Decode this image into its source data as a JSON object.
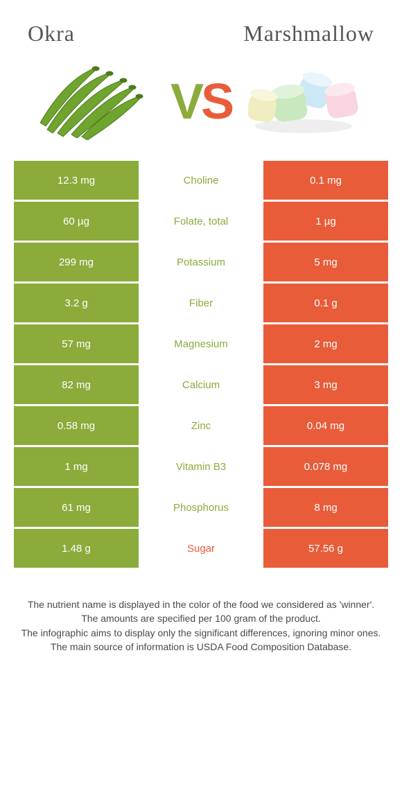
{
  "header": {
    "left_title": "Okra",
    "right_title": "Marshmallow",
    "vs_v": "V",
    "vs_s": "S"
  },
  "colors": {
    "green": "#8bab3b",
    "orange": "#e85c3a",
    "row_gap": "#ffffff"
  },
  "table": {
    "rows": [
      {
        "left": "12.3 mg",
        "label": "Choline",
        "right": "0.1 mg",
        "winner": "green"
      },
      {
        "left": "60 µg",
        "label": "Folate, total",
        "right": "1 µg",
        "winner": "green"
      },
      {
        "left": "299 mg",
        "label": "Potassium",
        "right": "5 mg",
        "winner": "green"
      },
      {
        "left": "3.2 g",
        "label": "Fiber",
        "right": "0.1 g",
        "winner": "green"
      },
      {
        "left": "57 mg",
        "label": "Magnesium",
        "right": "2 mg",
        "winner": "green"
      },
      {
        "left": "82 mg",
        "label": "Calcium",
        "right": "3 mg",
        "winner": "green"
      },
      {
        "left": "0.58 mg",
        "label": "Zinc",
        "right": "0.04 mg",
        "winner": "green"
      },
      {
        "left": "1 mg",
        "label": "Vitamin B3",
        "right": "0.078 mg",
        "winner": "green"
      },
      {
        "left": "61 mg",
        "label": "Phosphorus",
        "right": "8 mg",
        "winner": "green"
      },
      {
        "left": "1.48 g",
        "label": "Sugar",
        "right": "57.56 g",
        "winner": "orange"
      }
    ]
  },
  "footnotes": {
    "l1": "The nutrient name is displayed in the color of the food we considered as 'winner'.",
    "l2": "The amounts are specified per 100 gram of the product.",
    "l3": "The infographic aims to display only the significant differences, ignoring minor ones.",
    "l4": "The main source of information is USDA Food Composition Database."
  }
}
